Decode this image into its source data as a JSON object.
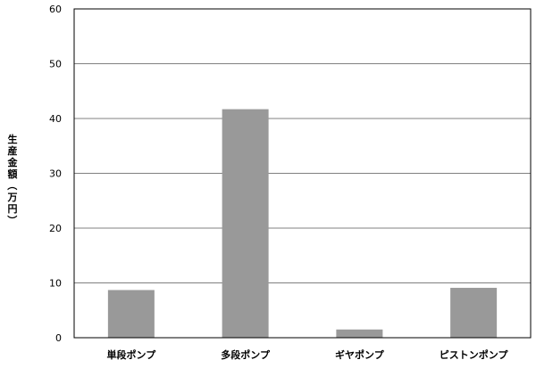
{
  "chart_data": {
    "type": "bar",
    "title": "",
    "xlabel": "",
    "ylabel": "生産金額（万円）",
    "categories": [
      "単段ポンプ",
      "多段ポンプ",
      "ギヤポンプ",
      "ピストンポンプ"
    ],
    "values": [
      8.7,
      41.7,
      1.5,
      9.1
    ],
    "ylim": [
      0,
      60
    ],
    "yticks": [
      0,
      10,
      20,
      30,
      40,
      50,
      60
    ],
    "grid": true,
    "legend": "none",
    "colors": {
      "bar": "#999999",
      "grid": "#808080",
      "axis": "#000000"
    }
  }
}
